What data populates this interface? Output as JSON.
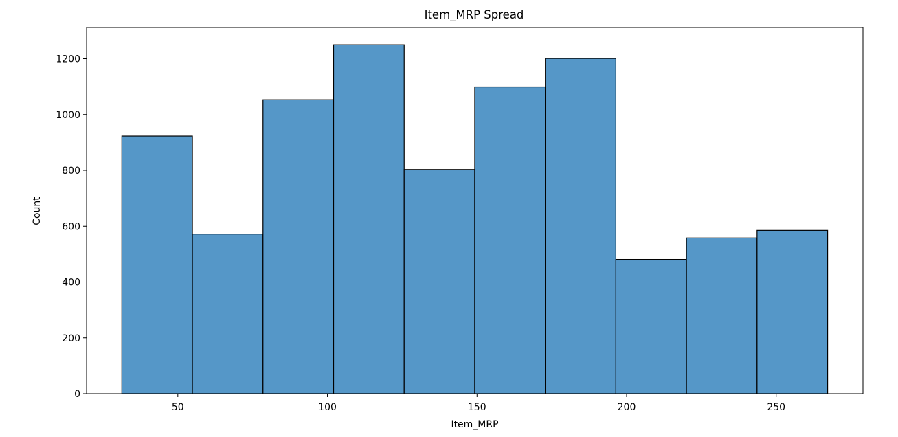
{
  "chart_data": {
    "type": "bar",
    "title": "Item_MRP Spread",
    "xlabel": "Item_MRP",
    "ylabel": "Count",
    "bins": [
      {
        "x0": 31.29,
        "x1": 54.88,
        "count": 923
      },
      {
        "x0": 54.88,
        "x1": 78.47,
        "count": 572
      },
      {
        "x0": 78.47,
        "x1": 102.06,
        "count": 1053
      },
      {
        "x0": 102.06,
        "x1": 125.65,
        "count": 1250
      },
      {
        "x0": 125.65,
        "x1": 149.24,
        "count": 803
      },
      {
        "x0": 149.24,
        "x1": 172.83,
        "count": 1099
      },
      {
        "x0": 172.83,
        "x1": 196.42,
        "count": 1201
      },
      {
        "x0": 196.42,
        "x1": 220.01,
        "count": 481
      },
      {
        "x0": 220.01,
        "x1": 243.6,
        "count": 558
      },
      {
        "x0": 243.6,
        "x1": 267.19,
        "count": 585
      }
    ],
    "xlim": [
      19.5,
      279.0
    ],
    "ylim": [
      0,
      1312
    ],
    "xticks": [
      50,
      100,
      150,
      200,
      250
    ],
    "xtick_labels": [
      "50",
      "100",
      "150",
      "200",
      "250"
    ],
    "yticks": [
      0,
      200,
      400,
      600,
      800,
      1000,
      1200
    ],
    "ytick_labels": [
      "0",
      "200",
      "400",
      "600",
      "800",
      "1000",
      "1200"
    ],
    "bar_color": "#5597c8",
    "edge_color": "#000000",
    "grid": false,
    "legend": "none"
  }
}
